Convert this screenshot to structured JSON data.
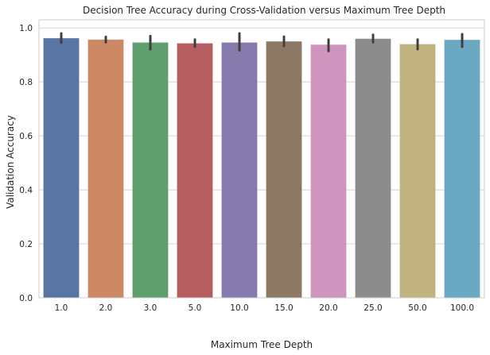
{
  "chart_data": {
    "type": "bar",
    "title": "Decision Tree Accuracy during Cross-Validation versus Maximum Tree Depth",
    "xlabel": "Maximum Tree Depth",
    "ylabel": "Validation Accuracy",
    "ylim": [
      0,
      1.03
    ],
    "yticks": [
      "0.0",
      "0.2",
      "0.4",
      "0.6",
      "0.8",
      "1.0"
    ],
    "grid": "horizontal",
    "categories": [
      "1.0",
      "2.0",
      "3.0",
      "5.0",
      "10.0",
      "15.0",
      "20.0",
      "25.0",
      "50.0",
      "100.0"
    ],
    "values": [
      0.962,
      0.957,
      0.946,
      0.943,
      0.946,
      0.95,
      0.938,
      0.96,
      0.94,
      0.956
    ],
    "ci_low": [
      0.945,
      0.947,
      0.921,
      0.93,
      0.917,
      0.933,
      0.914,
      0.947,
      0.921,
      0.93
    ],
    "ci_high": [
      0.98,
      0.967,
      0.97,
      0.957,
      0.98,
      0.968,
      0.957,
      0.975,
      0.957,
      0.977
    ],
    "colors": [
      "#5975a4",
      "#cc8963",
      "#5f9e6e",
      "#b55d60",
      "#857aab",
      "#8d7866",
      "#d095bf",
      "#8c8c8c",
      "#c1b37f",
      "#6ba9c3"
    ],
    "errorbar_color": "#3f3f3f",
    "grid_color": "#d5d5d5"
  }
}
